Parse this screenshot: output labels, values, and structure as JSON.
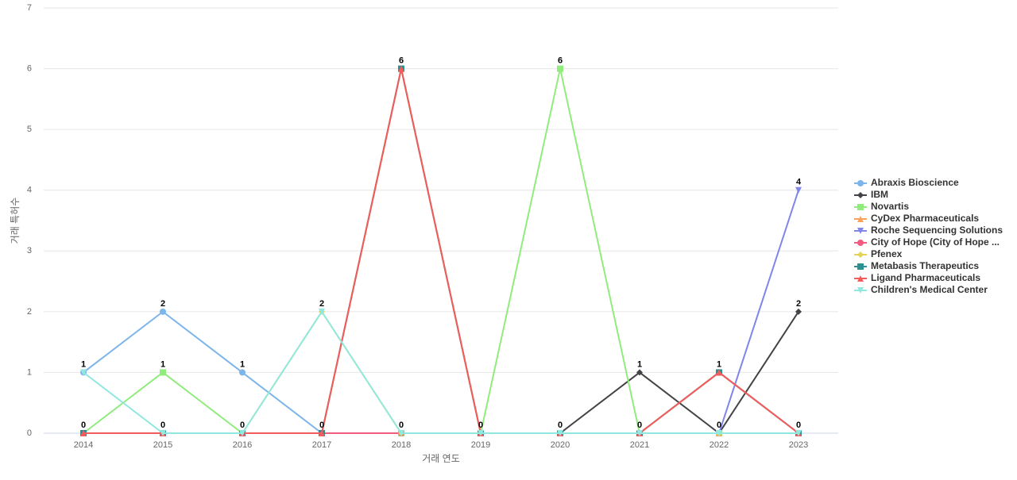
{
  "chart_data": {
    "type": "line",
    "x_label": "거래 연도",
    "y_label": "거래 특허수",
    "categories": [
      "2014",
      "2015",
      "2016",
      "2017",
      "2018",
      "2019",
      "2020",
      "2021",
      "2022",
      "2023"
    ],
    "ylim": [
      0,
      7
    ],
    "yticks": [
      0,
      1,
      2,
      3,
      4,
      5,
      6,
      7
    ],
    "grid": true,
    "legend": "right",
    "series": [
      {
        "name": "Abraxis Bioscience",
        "color": "#7cb5ec",
        "marker": "circle",
        "values": [
          1,
          2,
          1,
          0,
          0,
          0,
          0,
          0,
          0,
          0
        ]
      },
      {
        "name": "IBM",
        "color": "#434348",
        "marker": "diamond",
        "values": [
          0,
          0,
          0,
          0,
          0,
          0,
          0,
          1,
          0,
          2
        ]
      },
      {
        "name": "Novartis",
        "color": "#90ed7d",
        "marker": "square",
        "values": [
          0,
          1,
          0,
          0,
          0,
          0,
          6,
          0,
          0,
          0
        ]
      },
      {
        "name": "CyDex Pharmaceuticals",
        "color": "#f7a35c",
        "marker": "triangle",
        "values": [
          0,
          0,
          0,
          0,
          6,
          0,
          0,
          0,
          0,
          0
        ]
      },
      {
        "name": "Roche Sequencing Solutions",
        "color": "#8085e9",
        "marker": "triangle-down",
        "values": [
          0,
          0,
          0,
          0,
          0,
          0,
          0,
          0,
          0,
          4
        ]
      },
      {
        "name": "City of Hope (City of Hope ...",
        "color": "#f15c80",
        "marker": "circle",
        "values": [
          0,
          0,
          0,
          0,
          0,
          0,
          0,
          0,
          1,
          0
        ]
      },
      {
        "name": "Pfenex",
        "color": "#e4d354",
        "marker": "diamond",
        "values": [
          0,
          0,
          0,
          2,
          0,
          0,
          0,
          0,
          0,
          0
        ]
      },
      {
        "name": "Metabasis Therapeutics",
        "color": "#2b908f",
        "marker": "square",
        "values": [
          0,
          0,
          0,
          0,
          6,
          0,
          0,
          0,
          1,
          0
        ]
      },
      {
        "name": "Ligand Pharmaceuticals",
        "color": "#f45b5b",
        "marker": "triangle",
        "values": [
          0,
          0,
          0,
          0,
          6,
          0,
          0,
          0,
          1,
          0
        ]
      },
      {
        "name": "Children's Medical Center",
        "color": "#91e8e1",
        "marker": "triangle-down",
        "values": [
          1,
          0,
          0,
          2,
          0,
          0,
          0,
          0,
          0,
          0
        ]
      }
    ]
  }
}
